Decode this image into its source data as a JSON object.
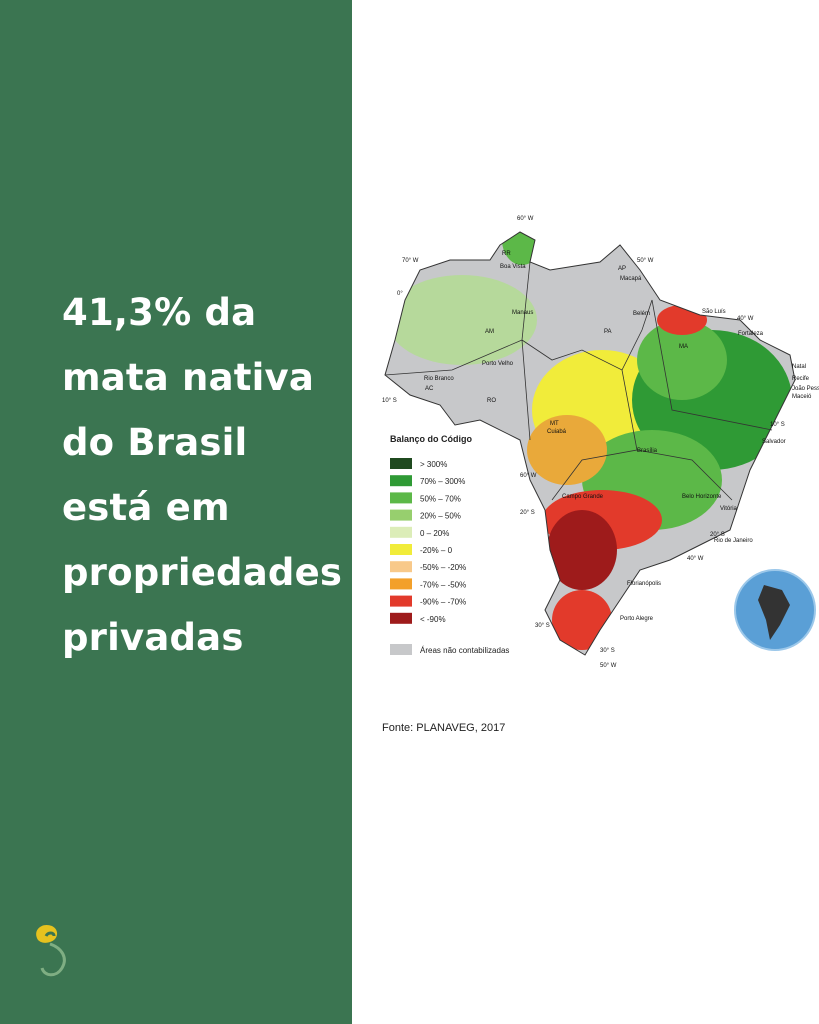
{
  "headline": [
    "41,3% da",
    "mata nativa",
    "do Brasil",
    "está em",
    "propriedades",
    "privadas"
  ],
  "map": {
    "legend_title": "Balanço do Código",
    "legend": [
      {
        "label": ">   300%",
        "color": "#1f4a1f"
      },
      {
        "label": "70%  –  300%",
        "color": "#2f9a35"
      },
      {
        "label": "50%  –  70%",
        "color": "#5cb848"
      },
      {
        "label": "20%  –  50%",
        "color": "#97cf6e"
      },
      {
        "label": "0  –  20%",
        "color": "#dcedb8"
      },
      {
        "label": "-20%  –  0",
        "color": "#f1ec3a"
      },
      {
        "label": "-50%  –  -20%",
        "color": "#f8c98a"
      },
      {
        "label": "-70%  –  -50%",
        "color": "#f3a02a"
      },
      {
        "label": "-90%  –  -70%",
        "color": "#e23a2b"
      },
      {
        "label": "<   -90%",
        "color": "#9e1b1b"
      }
    ],
    "unaccounted": {
      "label": "Áreas não contabilizadas",
      "color": "#c7c8ca"
    },
    "places": [
      "RR",
      "Boa Vista",
      "AP",
      "Macapá",
      "AM",
      "Manaus",
      "PA",
      "Belém",
      "São Luís",
      "MA",
      "Fortaleza",
      "Natal",
      "Recife",
      "João Pessoa",
      "Maceió",
      "Salvador",
      "AC",
      "Rio Branco",
      "RO",
      "Porto Velho",
      "MT",
      "Cuiabá",
      "Brasília",
      "Belo Horizonte",
      "Vitória",
      "Rio de Janeiro",
      "Campo Grande",
      "Florianópolis",
      "Porto Alegre"
    ],
    "coordinates": [
      "60° W",
      "70° W",
      "50° W",
      "0°",
      "40° W",
      "10° S",
      "10° S",
      "60° W",
      "20° S",
      "20° S",
      "40° W",
      "30° S",
      "30° S",
      "50° W"
    ]
  },
  "source": "Fonte: PLANAVEG, 2017"
}
